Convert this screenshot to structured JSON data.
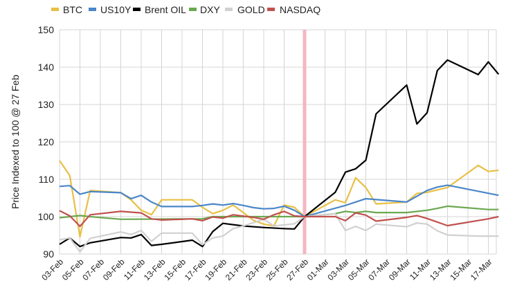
{
  "chart_data": {
    "type": "line",
    "title": "",
    "xlabel": "",
    "ylabel": "Price Indexed to 100 @ 27 Feb",
    "ylim": [
      90,
      150
    ],
    "yticks": [
      90,
      100,
      110,
      120,
      130,
      140,
      150
    ],
    "grid": true,
    "legend_position": "top",
    "x_unit": "days since 03-Feb",
    "x_range": [
      0,
      43
    ],
    "highlight_x": 24,
    "highlight_label": "27-Feb",
    "highlight_color": "#f4b6bf",
    "x_tick_labels": [
      "03-Feb",
      "05-Feb",
      "07-Feb",
      "09-Feb",
      "11-Feb",
      "13-Feb",
      "15-Feb",
      "17-Feb",
      "19-Feb",
      "21-Feb",
      "23-Feb",
      "25-Feb",
      "27-Feb",
      "01-Mar",
      "03-Mar",
      "05-Mar",
      "07-Mar",
      "09-Mar",
      "11-Mar",
      "13-Mar",
      "15-Mar",
      "17-Mar"
    ],
    "series": [
      {
        "name": "BTC",
        "color": "#e8c044",
        "points": [
          [
            0,
            115
          ],
          [
            1,
            111
          ],
          [
            2,
            94.6
          ],
          [
            3,
            107
          ],
          [
            6,
            106.4
          ],
          [
            7,
            104.5
          ],
          [
            8,
            101.7
          ],
          [
            9,
            100.5
          ],
          [
            10,
            104.5
          ],
          [
            13,
            104.5
          ],
          [
            14,
            102.5
          ],
          [
            15,
            100.8
          ],
          [
            16,
            101.7
          ],
          [
            17,
            103.1
          ],
          [
            18,
            101.1
          ],
          [
            19,
            99
          ],
          [
            20,
            98
          ],
          [
            21,
            97.5
          ],
          [
            22,
            103.1
          ],
          [
            23,
            102.5
          ],
          [
            24,
            100
          ],
          [
            27,
            104.5
          ],
          [
            28,
            103.7
          ],
          [
            29,
            110.4
          ],
          [
            30,
            107.8
          ],
          [
            31,
            103.4
          ],
          [
            34,
            103.9
          ],
          [
            35,
            106.2
          ],
          [
            36,
            106.5
          ],
          [
            38,
            107.8
          ],
          [
            41,
            113.7
          ],
          [
            42,
            112.1
          ],
          [
            43,
            112.4
          ]
        ]
      },
      {
        "name": "US10Y",
        "color": "#4a86c8",
        "points": [
          [
            0,
            108.1
          ],
          [
            1,
            108.3
          ],
          [
            2,
            106
          ],
          [
            3,
            106.7
          ],
          [
            6,
            106.4
          ],
          [
            7,
            104.8
          ],
          [
            8,
            105.7
          ],
          [
            9,
            103.9
          ],
          [
            10,
            102.7
          ],
          [
            13,
            102.7
          ],
          [
            14,
            103
          ],
          [
            15,
            103.4
          ],
          [
            16,
            103.1
          ],
          [
            17,
            103.5
          ],
          [
            18,
            103
          ],
          [
            19,
            102.4
          ],
          [
            20,
            102.1
          ],
          [
            21,
            102.2
          ],
          [
            22,
            102.8
          ],
          [
            23,
            101.7
          ],
          [
            24,
            100
          ],
          [
            28,
            103
          ],
          [
            30,
            104.8
          ],
          [
            34,
            103.9
          ],
          [
            36,
            107
          ],
          [
            37,
            107.9
          ],
          [
            38,
            108.4
          ],
          [
            43,
            105.7
          ]
        ]
      },
      {
        "name": "Brent OIL",
        "color": "#000000",
        "points": [
          [
            0,
            92.6
          ],
          [
            1,
            94.3
          ],
          [
            2,
            92
          ],
          [
            3,
            93
          ],
          [
            6,
            94.4
          ],
          [
            7,
            94.3
          ],
          [
            8,
            95.2
          ],
          [
            9,
            92.3
          ],
          [
            10,
            92.6
          ],
          [
            13,
            93.7
          ],
          [
            14,
            92
          ],
          [
            15,
            96
          ],
          [
            16,
            98.2
          ],
          [
            18,
            97.5
          ],
          [
            20,
            97.1
          ],
          [
            22,
            96.8
          ],
          [
            23,
            96.7
          ],
          [
            24,
            100
          ],
          [
            27,
            106.5
          ],
          [
            28,
            111.9
          ],
          [
            29,
            112.8
          ],
          [
            30,
            115.1
          ],
          [
            31,
            127.5
          ],
          [
            34,
            135.2
          ],
          [
            35,
            124.8
          ],
          [
            36,
            127.8
          ],
          [
            37,
            139.1
          ],
          [
            38,
            141.9
          ],
          [
            41,
            138
          ],
          [
            42,
            141.4
          ],
          [
            43,
            138.1
          ]
        ]
      },
      {
        "name": "DXY",
        "color": "#6aa84f",
        "points": [
          [
            0,
            99.7
          ],
          [
            2,
            100.3
          ],
          [
            3,
            100
          ],
          [
            6,
            99.3
          ],
          [
            14,
            99.4
          ],
          [
            15,
            100
          ],
          [
            24,
            100
          ],
          [
            27,
            100.8
          ],
          [
            28,
            101.4
          ],
          [
            29,
            101.1
          ],
          [
            30,
            101.4
          ],
          [
            31,
            101.1
          ],
          [
            34,
            101.1
          ],
          [
            36,
            101.7
          ],
          [
            37,
            102.2
          ],
          [
            38,
            102.8
          ],
          [
            42,
            101.9
          ],
          [
            43,
            101.9
          ]
        ]
      },
      {
        "name": "GOLD",
        "color": "#d0d0d0",
        "points": [
          [
            0,
            93.8
          ],
          [
            1,
            94.3
          ],
          [
            2,
            90.6
          ],
          [
            3,
            94.2
          ],
          [
            6,
            95.9
          ],
          [
            7,
            95.2
          ],
          [
            8,
            96.3
          ],
          [
            9,
            93.4
          ],
          [
            10,
            95.6
          ],
          [
            13,
            95.6
          ],
          [
            14,
            92.5
          ],
          [
            15,
            94.3
          ],
          [
            16,
            94.8
          ],
          [
            17,
            96.8
          ],
          [
            18,
            97.5
          ],
          [
            20,
            99.3
          ],
          [
            21,
            97.5
          ],
          [
            23,
            98.1
          ],
          [
            24,
            100
          ],
          [
            27,
            100.8
          ],
          [
            28,
            96.3
          ],
          [
            29,
            97.4
          ],
          [
            30,
            96.3
          ],
          [
            31,
            98
          ],
          [
            34,
            97.3
          ],
          [
            35,
            98.3
          ],
          [
            36,
            98
          ],
          [
            37,
            96.2
          ],
          [
            38,
            95.1
          ],
          [
            41,
            94.8
          ],
          [
            43,
            94.8
          ]
        ]
      },
      {
        "name": "NASDAQ",
        "color": "#c0504d",
        "points": [
          [
            0,
            101.6
          ],
          [
            1,
            100.2
          ],
          [
            2,
            97.4
          ],
          [
            3,
            100.5
          ],
          [
            6,
            101.4
          ],
          [
            8,
            101
          ],
          [
            9,
            99.4
          ],
          [
            10,
            99.1
          ],
          [
            13,
            99.4
          ],
          [
            14,
            98.9
          ],
          [
            15,
            99.9
          ],
          [
            16,
            99.6
          ],
          [
            17,
            100.5
          ],
          [
            19,
            99.8
          ],
          [
            20,
            99.3
          ],
          [
            21,
            100.5
          ],
          [
            22,
            101.4
          ],
          [
            23,
            100.2
          ],
          [
            24,
            100
          ],
          [
            27,
            100
          ],
          [
            28,
            98.9
          ],
          [
            29,
            101
          ],
          [
            30,
            100.4
          ],
          [
            31,
            98.8
          ],
          [
            34,
            99.8
          ],
          [
            35,
            100.3
          ],
          [
            36,
            99.5
          ],
          [
            38,
            97.6
          ],
          [
            42,
            99.4
          ],
          [
            43,
            100
          ]
        ]
      }
    ]
  }
}
